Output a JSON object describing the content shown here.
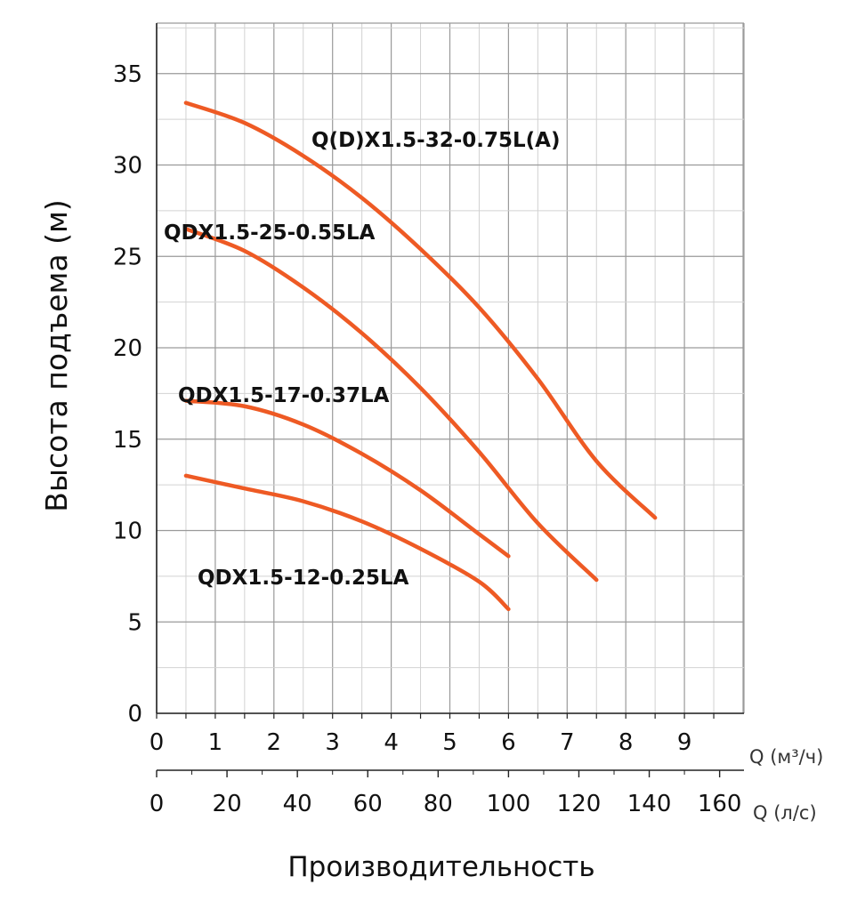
{
  "chart_data": {
    "type": "line",
    "ylabel": "Высота подъема (м)",
    "xtitle": "Производительность",
    "x_unit": "Q (м³/ч)",
    "x2_unit": "Q (л/с)",
    "xlim": [
      0,
      10
    ],
    "ylim": [
      0,
      37.5
    ],
    "y_ticks": [
      "0",
      "5",
      "10",
      "15",
      "20",
      "25",
      "30",
      "35"
    ],
    "x_ticks": [
      "0",
      "1",
      "2",
      "3",
      "4",
      "5",
      "6",
      "7",
      "8",
      "9"
    ],
    "x2_ticks": [
      "0",
      "20",
      "40",
      "60",
      "80",
      "100",
      "120",
      "140",
      "160"
    ],
    "grid": true,
    "colors": {
      "curve": "#ee5a24",
      "grid": "#9a9a9a"
    },
    "series": [
      {
        "name": "Q(D)X1.5-32-0.75L(A)",
        "x": [
          0.5,
          1.5,
          2.5,
          3.5,
          4.5,
          5.5,
          6.5,
          7.5,
          8.5
        ],
        "y": [
          33.4,
          32.3,
          30.5,
          28.2,
          25.4,
          22.2,
          18.3,
          13.8,
          10.7
        ]
      },
      {
        "name": "QDX1.5-25-0.55LA",
        "x": [
          0.5,
          1.5,
          2.5,
          3.5,
          4.5,
          5.5,
          6.5,
          7.5
        ],
        "y": [
          26.5,
          25.3,
          23.3,
          20.8,
          17.8,
          14.3,
          10.4,
          7.3
        ]
      },
      {
        "name": "QDX1.5-17-0.37LA",
        "x": [
          0.5,
          1.5,
          2.5,
          3.5,
          4.5,
          5.5,
          6.0
        ],
        "y": [
          17.1,
          16.8,
          15.8,
          14.2,
          12.2,
          9.8,
          8.6
        ]
      },
      {
        "name": "QDX1.5-12-0.25LA",
        "x": [
          0.5,
          1.5,
          2.5,
          3.5,
          4.5,
          5.5,
          6.0
        ],
        "y": [
          13.0,
          12.3,
          11.6,
          10.5,
          9.0,
          7.2,
          5.7
        ]
      }
    ]
  }
}
